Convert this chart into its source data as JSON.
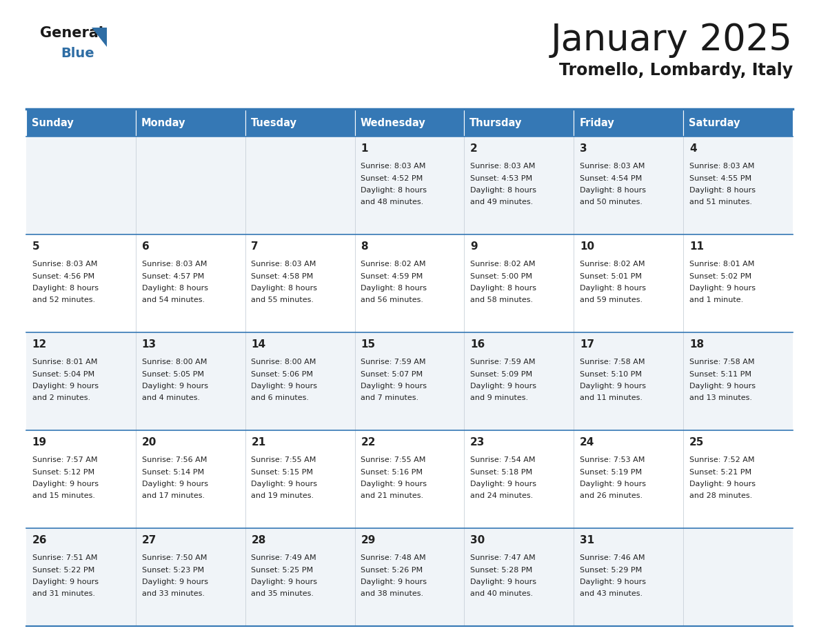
{
  "title": "January 2025",
  "subtitle": "Tromello, Lombardy, Italy",
  "header_bg_color": "#3578b5",
  "header_text_color": "#ffffff",
  "cell_bg_even": "#f0f4f8",
  "cell_bg_odd": "#ffffff",
  "border_color": "#3578b5",
  "text_color": "#222222",
  "day_names": [
    "Sunday",
    "Monday",
    "Tuesday",
    "Wednesday",
    "Thursday",
    "Friday",
    "Saturday"
  ],
  "weeks": [
    [
      {
        "day": "",
        "sunrise": "",
        "sunset": "",
        "daylight": ""
      },
      {
        "day": "",
        "sunrise": "",
        "sunset": "",
        "daylight": ""
      },
      {
        "day": "",
        "sunrise": "",
        "sunset": "",
        "daylight": ""
      },
      {
        "day": "1",
        "sunrise": "8:03 AM",
        "sunset": "4:52 PM",
        "daylight": "8 hours and 48 minutes."
      },
      {
        "day": "2",
        "sunrise": "8:03 AM",
        "sunset": "4:53 PM",
        "daylight": "8 hours and 49 minutes."
      },
      {
        "day": "3",
        "sunrise": "8:03 AM",
        "sunset": "4:54 PM",
        "daylight": "8 hours and 50 minutes."
      },
      {
        "day": "4",
        "sunrise": "8:03 AM",
        "sunset": "4:55 PM",
        "daylight": "8 hours and 51 minutes."
      }
    ],
    [
      {
        "day": "5",
        "sunrise": "8:03 AM",
        "sunset": "4:56 PM",
        "daylight": "8 hours and 52 minutes."
      },
      {
        "day": "6",
        "sunrise": "8:03 AM",
        "sunset": "4:57 PM",
        "daylight": "8 hours and 54 minutes."
      },
      {
        "day": "7",
        "sunrise": "8:03 AM",
        "sunset": "4:58 PM",
        "daylight": "8 hours and 55 minutes."
      },
      {
        "day": "8",
        "sunrise": "8:02 AM",
        "sunset": "4:59 PM",
        "daylight": "8 hours and 56 minutes."
      },
      {
        "day": "9",
        "sunrise": "8:02 AM",
        "sunset": "5:00 PM",
        "daylight": "8 hours and 58 minutes."
      },
      {
        "day": "10",
        "sunrise": "8:02 AM",
        "sunset": "5:01 PM",
        "daylight": "8 hours and 59 minutes."
      },
      {
        "day": "11",
        "sunrise": "8:01 AM",
        "sunset": "5:02 PM",
        "daylight": "9 hours and 1 minute."
      }
    ],
    [
      {
        "day": "12",
        "sunrise": "8:01 AM",
        "sunset": "5:04 PM",
        "daylight": "9 hours and 2 minutes."
      },
      {
        "day": "13",
        "sunrise": "8:00 AM",
        "sunset": "5:05 PM",
        "daylight": "9 hours and 4 minutes."
      },
      {
        "day": "14",
        "sunrise": "8:00 AM",
        "sunset": "5:06 PM",
        "daylight": "9 hours and 6 minutes."
      },
      {
        "day": "15",
        "sunrise": "7:59 AM",
        "sunset": "5:07 PM",
        "daylight": "9 hours and 7 minutes."
      },
      {
        "day": "16",
        "sunrise": "7:59 AM",
        "sunset": "5:09 PM",
        "daylight": "9 hours and 9 minutes."
      },
      {
        "day": "17",
        "sunrise": "7:58 AM",
        "sunset": "5:10 PM",
        "daylight": "9 hours and 11 minutes."
      },
      {
        "day": "18",
        "sunrise": "7:58 AM",
        "sunset": "5:11 PM",
        "daylight": "9 hours and 13 minutes."
      }
    ],
    [
      {
        "day": "19",
        "sunrise": "7:57 AM",
        "sunset": "5:12 PM",
        "daylight": "9 hours and 15 minutes."
      },
      {
        "day": "20",
        "sunrise": "7:56 AM",
        "sunset": "5:14 PM",
        "daylight": "9 hours and 17 minutes."
      },
      {
        "day": "21",
        "sunrise": "7:55 AM",
        "sunset": "5:15 PM",
        "daylight": "9 hours and 19 minutes."
      },
      {
        "day": "22",
        "sunrise": "7:55 AM",
        "sunset": "5:16 PM",
        "daylight": "9 hours and 21 minutes."
      },
      {
        "day": "23",
        "sunrise": "7:54 AM",
        "sunset": "5:18 PM",
        "daylight": "9 hours and 24 minutes."
      },
      {
        "day": "24",
        "sunrise": "7:53 AM",
        "sunset": "5:19 PM",
        "daylight": "9 hours and 26 minutes."
      },
      {
        "day": "25",
        "sunrise": "7:52 AM",
        "sunset": "5:21 PM",
        "daylight": "9 hours and 28 minutes."
      }
    ],
    [
      {
        "day": "26",
        "sunrise": "7:51 AM",
        "sunset": "5:22 PM",
        "daylight": "9 hours and 31 minutes."
      },
      {
        "day": "27",
        "sunrise": "7:50 AM",
        "sunset": "5:23 PM",
        "daylight": "9 hours and 33 minutes."
      },
      {
        "day": "28",
        "sunrise": "7:49 AM",
        "sunset": "5:25 PM",
        "daylight": "9 hours and 35 minutes."
      },
      {
        "day": "29",
        "sunrise": "7:48 AM",
        "sunset": "5:26 PM",
        "daylight": "9 hours and 38 minutes."
      },
      {
        "day": "30",
        "sunrise": "7:47 AM",
        "sunset": "5:28 PM",
        "daylight": "9 hours and 40 minutes."
      },
      {
        "day": "31",
        "sunrise": "7:46 AM",
        "sunset": "5:29 PM",
        "daylight": "9 hours and 43 minutes."
      },
      {
        "day": "",
        "sunrise": "",
        "sunset": "",
        "daylight": ""
      }
    ]
  ]
}
